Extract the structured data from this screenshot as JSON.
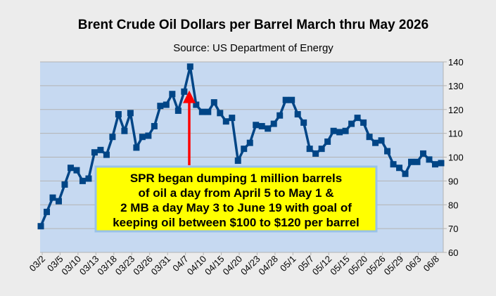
{
  "chart_data": {
    "type": "line",
    "title": "Brent Crude Oil Dollars per Barrel March thru May 2026",
    "subtitle": "Source: US Department of Energy",
    "xlabel": "",
    "ylabel": "",
    "ylim": [
      60,
      140
    ],
    "yticks": [
      "60",
      "70",
      "80",
      "90",
      "100",
      "110",
      "120",
      "130",
      "140"
    ],
    "y_axis_side": "right",
    "grid": "horizontal",
    "x_tick_labels": [
      "03/2",
      "03/5",
      "03/10",
      "03/13",
      "03/18",
      "03/23",
      "03/26",
      "03/31",
      "04/7",
      "04/10",
      "04/15",
      "04/20",
      "04/23",
      "04/28",
      "05/1",
      "05/7",
      "05/12",
      "05/15",
      "05/20",
      "05/26",
      "05/29",
      "06/3",
      "06/8"
    ],
    "series": [
      {
        "color": "#004586",
        "values": [
          71,
          77,
          83,
          81.5,
          88.5,
          95.5,
          94.5,
          90,
          91,
          102,
          103,
          101,
          108.5,
          118,
          111,
          118.5,
          104,
          108.5,
          109,
          113,
          121.5,
          122,
          126.5,
          119.5,
          127.5,
          138,
          122,
          119,
          119,
          123,
          118.5,
          115,
          116.5,
          98.5,
          103.5,
          106,
          113.5,
          113,
          112,
          114,
          117.5,
          124,
          124,
          118,
          114.5,
          103.5,
          101.5,
          103.5,
          106.5,
          111,
          110.5,
          111,
          114,
          116.5,
          114.5,
          108.5,
          106,
          107,
          102.5,
          97,
          95.5,
          93,
          98,
          98,
          101.5,
          99,
          97,
          97.5
        ]
      }
    ],
    "annotations": [
      {
        "type": "callout-box",
        "fill": "#ffff00",
        "lines": [
          "SPR began dumping 1 million barrels",
          "of oil a day from April 5 to May 1 &",
          "2 MB a day May 3 to June 19 with goal of",
          "keeping oil between $100 to $120 per barrel"
        ]
      },
      {
        "type": "arrow",
        "color": "#ff0000",
        "points_to_value": 128
      }
    ],
    "colors": {
      "plot_bg": "#c6d9f1",
      "page_bg": "#ececec",
      "line": "#004586"
    }
  }
}
